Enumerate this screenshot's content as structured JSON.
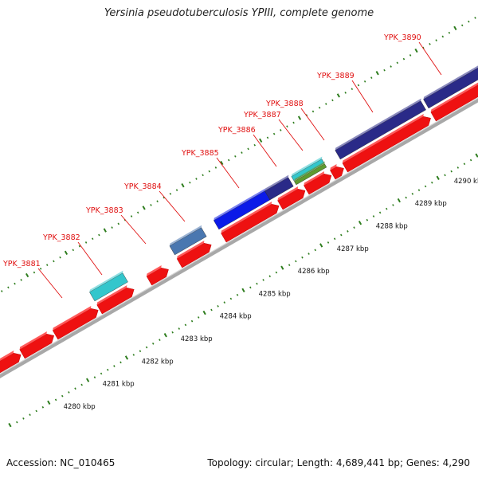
{
  "title": "Yersinia pseudotuberculosis YPIII, complete genome",
  "footer": {
    "accession": "Accession: NC_010465",
    "summary": "Topology: circular; Length: 4,689,441 bp; Genes: 4,290"
  },
  "colors": {
    "cds": "#ee1111",
    "backbone": "#a8a8a8",
    "ticks": "#2e7d1e",
    "label": "#e01010",
    "features": [
      "#2a2a88",
      "#0b1ae8",
      "#4a77b0",
      "#33c6cc",
      "#5f9a2e",
      "#46368f"
    ]
  },
  "ruler": {
    "unit": "kbp",
    "ticks": [
      {
        "value": 4280,
        "label": "4280 kbp"
      },
      {
        "value": 4281,
        "label": "4281 kbp"
      },
      {
        "value": 4282,
        "label": "4282 kbp"
      },
      {
        "value": 4283,
        "label": "4283 kbp"
      },
      {
        "value": 4284,
        "label": "4284 kbp"
      },
      {
        "value": 4285,
        "label": "4285 kbp"
      },
      {
        "value": 4286,
        "label": "4286 kbp"
      },
      {
        "value": 4287,
        "label": "4287 kbp"
      },
      {
        "value": 4288,
        "label": "4288 kbp"
      },
      {
        "value": 4289,
        "label": "4289 kbp"
      },
      {
        "value": 4290,
        "label": "4290 kbp"
      }
    ]
  },
  "genes": [
    {
      "name": "YPK_3881"
    },
    {
      "name": "YPK_3882"
    },
    {
      "name": "YPK_3883"
    },
    {
      "name": "YPK_3884"
    },
    {
      "name": "YPK_3885"
    },
    {
      "name": "YPK_3886"
    },
    {
      "name": "YPK_3887"
    },
    {
      "name": "YPK_3888"
    },
    {
      "name": "YPK_3889"
    },
    {
      "name": "YPK_3890"
    }
  ]
}
